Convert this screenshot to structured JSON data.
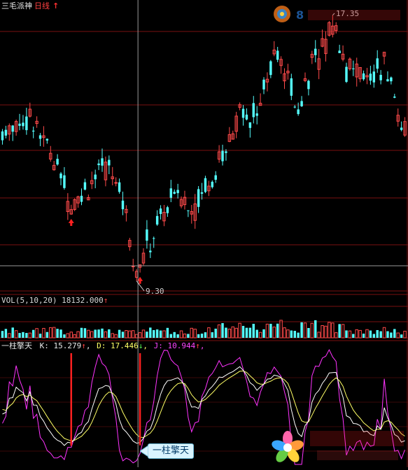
{
  "header": {
    "name": "三毛派神",
    "period": "日线",
    "period_arrow": "↑"
  },
  "price": {
    "high_label": "17.35",
    "low_label": "9.30",
    "ylim": [
      9.0,
      17.6
    ],
    "bars": 118,
    "high_index": 96,
    "low_index": 39,
    "markers": [
      20,
      40
    ]
  },
  "volume": {
    "label": "VOL(5,10,20)",
    "value": "18132.000",
    "arrow": "↑",
    "ylim": [
      0,
      60000
    ]
  },
  "indicator": {
    "name": "一柱擎天",
    "k_label": "K:",
    "k_value": "15.279",
    "k_arrow": "↑",
    "d_label": "D:",
    "d_value": "17.446",
    "d_arrow": "↓",
    "j_label": "J:",
    "j_value": "10.944",
    "j_arrow": "↑",
    "trail": ",",
    "callout": "一柱擎天",
    "signal_bars": [
      20,
      40
    ]
  },
  "colors": {
    "up": "#ff4a4a",
    "down": "#54ffff",
    "grid": "#7a0f0f",
    "k": "#ffffff",
    "d": "#ffff66",
    "j": "#ff33ff",
    "signal": "#ff2020"
  },
  "watermarks": {
    "top": "8"
  }
}
